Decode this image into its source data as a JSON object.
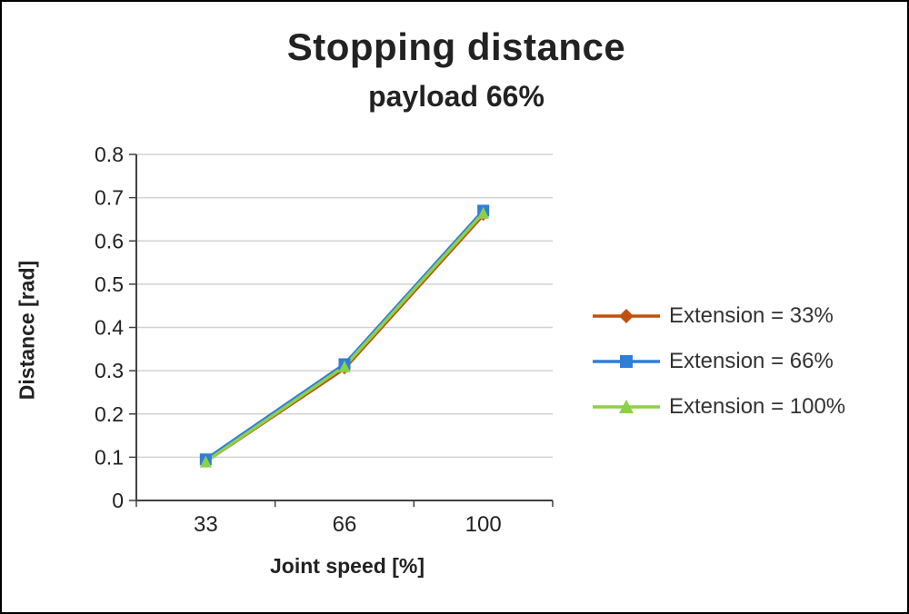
{
  "chart_data": {
    "type": "line",
    "title": "Stopping distance",
    "subtitle": "payload 66%",
    "xlabel": "Joint speed [%]",
    "ylabel": "Distance [rad]",
    "categories": [
      "33",
      "66",
      "100"
    ],
    "ylim": [
      0,
      0.8
    ],
    "ytick_step": 0.1,
    "grid": "horizontal",
    "legend_position": "right",
    "colors": {
      "axis": "#404040",
      "gridline": "#d3d3d3",
      "tick_label": "#222222"
    },
    "series": [
      {
        "name": "Extension = 33%",
        "marker": "diamond",
        "color": "#c0500f",
        "values": [
          0.09,
          0.305,
          0.66
        ]
      },
      {
        "name": "Extension = 66%",
        "marker": "square",
        "color": "#2f7ed8",
        "values": [
          0.095,
          0.315,
          0.67
        ]
      },
      {
        "name": "Extension = 100%",
        "marker": "triangle",
        "color": "#8cd04a",
        "values": [
          0.09,
          0.31,
          0.665
        ]
      }
    ]
  }
}
